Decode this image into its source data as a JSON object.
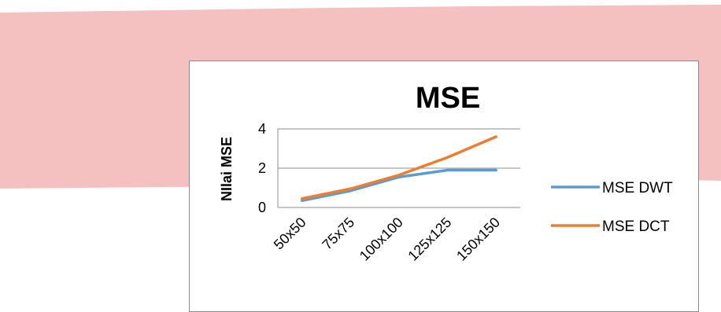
{
  "background": {
    "band_color": "#f5c0c0"
  },
  "chart_data": {
    "type": "line",
    "title": "MSE",
    "xlabel": "",
    "ylabel": "NIlai MSE",
    "categories": [
      "50x50",
      "75x75",
      "100x100",
      "125x125",
      "150x150"
    ],
    "ylim": [
      0,
      4
    ],
    "yticks": [
      0,
      2,
      4
    ],
    "grid": true,
    "legend_position": "right",
    "series": [
      {
        "name": "MSE DWT",
        "color": "#5b9bd5",
        "values": [
          0.35,
          0.85,
          1.55,
          1.9,
          1.9
        ]
      },
      {
        "name": "MSE DCT",
        "color": "#ed7d31",
        "values": [
          0.45,
          0.95,
          1.65,
          2.55,
          3.6
        ]
      }
    ]
  }
}
